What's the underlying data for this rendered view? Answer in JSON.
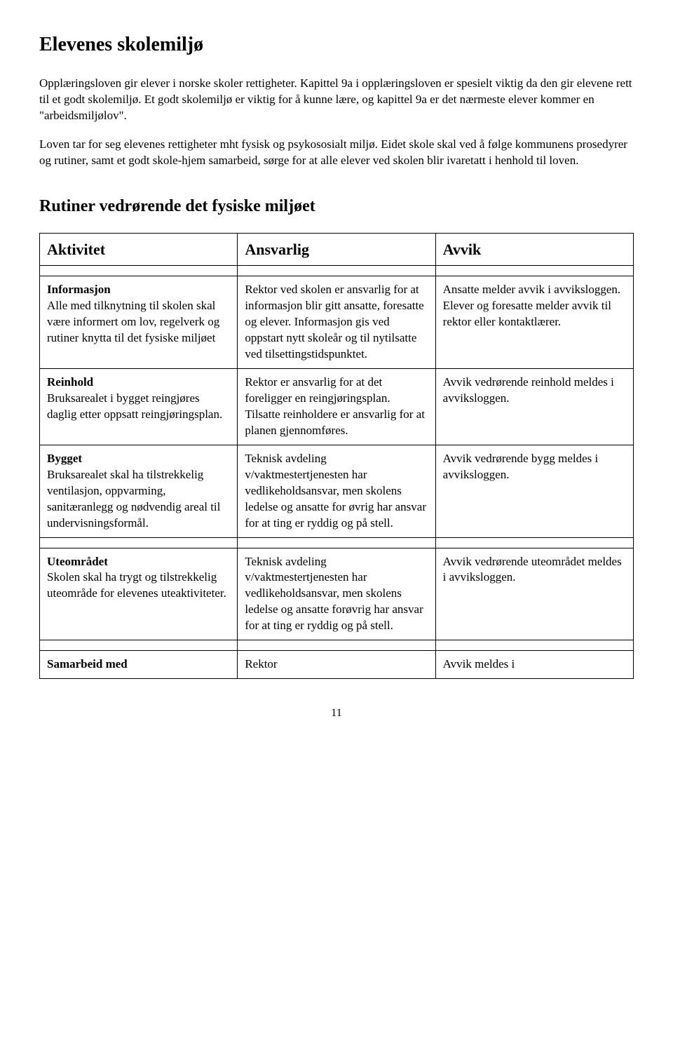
{
  "title": "Elevenes skolemiljø",
  "intro": [
    "Opplæringsloven gir elever i norske skoler rettigheter. Kapittel 9a i opplæringsloven er spesielt viktig da den gir elevene rett til et godt skolemiljø. Et godt skolemiljø er viktig for å kunne lære, og kapittel 9a er det nærmeste elever kommer en \"arbeidsmiljølov\".",
    "Loven tar for seg elevenes rettigheter mht fysisk og psykososialt miljø. Eidet skole skal ved å følge kommunens prosedyrer og rutiner, samt et godt skole-hjem samarbeid, sørge for at alle elever ved skolen blir ivaretatt i henhold til loven."
  ],
  "section_title": "Rutiner vedrørende det fysiske miljøet",
  "headers": [
    "Aktivitet",
    "Ansvarlig",
    "Avvik"
  ],
  "rows": [
    {
      "aktivitet_title": "Informasjon",
      "aktivitet_body": "Alle med tilknytning til skolen skal være informert om lov, regelverk og rutiner knytta til det fysiske miljøet",
      "ansvarlig": "Rektor ved skolen er ansvarlig for at informasjon blir gitt ansatte, foresatte og elever. Informasjon gis ved oppstart nytt skoleår og til nytilsatte ved tilsettingstidspunktet.",
      "avvik": "Ansatte melder avvik i avviksloggen. Elever og foresatte melder avvik til rektor eller kontaktlærer."
    },
    {
      "aktivitet_title": "Reinhold",
      "aktivitet_body": "Bruksarealet i bygget reingjøres daglig etter oppsatt reingjøringsplan.",
      "ansvarlig": "Rektor er ansvarlig for at det foreligger en reingjøringsplan. Tilsatte reinholdere er ansvarlig for at planen gjennomføres.",
      "avvik": "Avvik vedrørende reinhold meldes i avviksloggen."
    },
    {
      "aktivitet_title": "Bygget",
      "aktivitet_body": "Bruksarealet skal ha tilstrekkelig ventilasjon, oppvarming, sanitæranlegg og nødvendig areal til undervisningsformål.",
      "ansvarlig": "Teknisk avdeling v/vaktmestertjenesten har vedlikeholdsansvar, men skolens ledelse og ansatte for øvrig har ansvar for at ting er ryddig og på stell.",
      "avvik": "Avvik vedrørende bygg meldes i avviksloggen."
    },
    {
      "aktivitet_title": "Uteområdet",
      "aktivitet_body": "Skolen skal ha trygt og tilstrekkelig uteområde for elevenes uteaktiviteter.",
      "ansvarlig": "Teknisk avdeling v/vaktmestertjenesten har vedlikeholdsansvar, men skolens ledelse og ansatte forøvrig har ansvar for at ting er ryddig og på stell.",
      "avvik": "Avvik vedrørende uteområdet meldes i avviksloggen."
    },
    {
      "aktivitet_title": "Samarbeid med",
      "aktivitet_body": "",
      "ansvarlig": "Rektor",
      "avvik": "Avvik meldes i"
    }
  ],
  "page_number": "11"
}
